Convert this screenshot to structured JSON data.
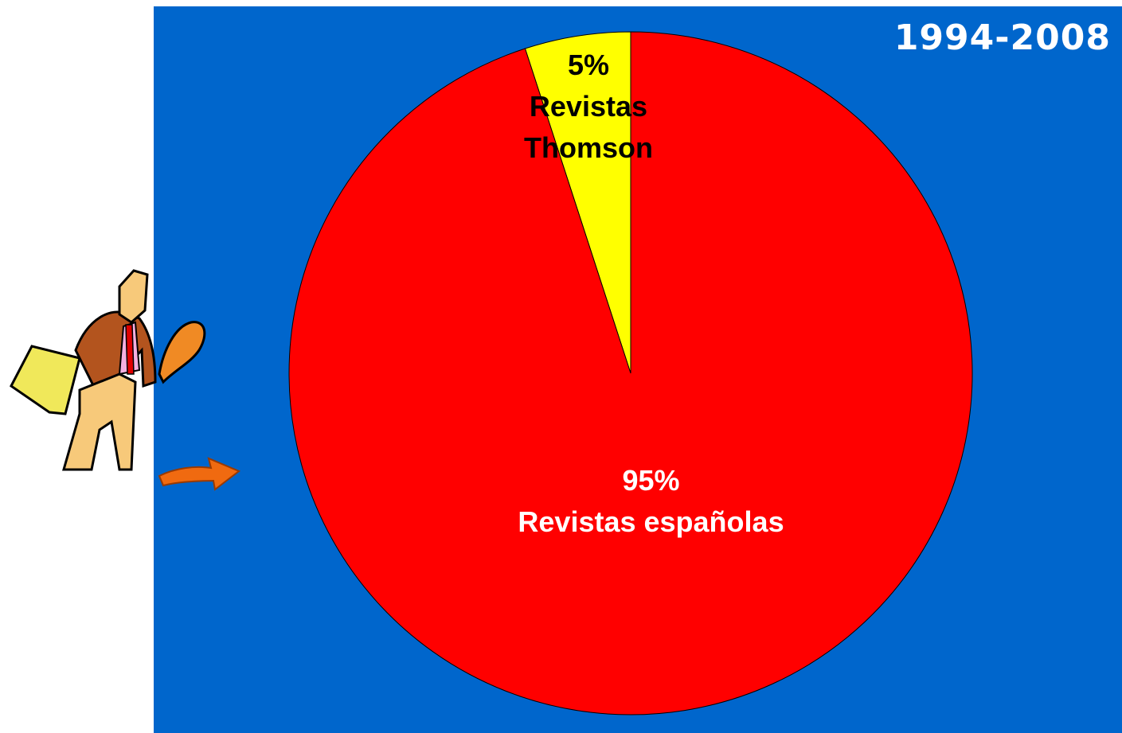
{
  "chart_data": {
    "type": "pie",
    "title": "1994-2008",
    "categories": [
      "Revistas Thomson",
      "Revistas españolas"
    ],
    "values": [
      5,
      95
    ],
    "value_labels": [
      "5%",
      "95%"
    ],
    "colors": [
      "#ffff00",
      "#ff0000"
    ],
    "label_colors": [
      "#000000",
      "#ffffff"
    ],
    "background": "#0066cc"
  }
}
